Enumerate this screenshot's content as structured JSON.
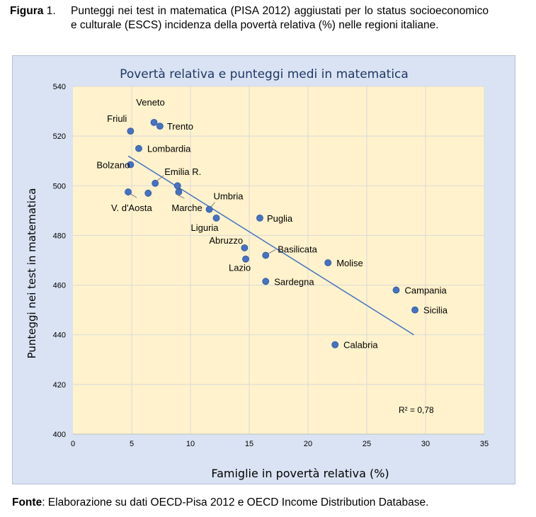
{
  "caption": {
    "label": "Figura",
    "number": "1",
    "text": "Punteggi nei test in matematica (PISA 2012) aggiustati per lo status socioeconomico e culturale (ESCS) incidenza della povertà relativa (%) nelle regioni italiane."
  },
  "source": {
    "label": "Fonte",
    "text": ": Elaborazione su dati OECD-Pisa 2012 e OECD Income Distribution Database."
  },
  "chart_data": {
    "type": "scatter",
    "title": "Povertà relativa e punteggi medi in matematica",
    "xlabel": "Famiglie in povertà relativa (%)",
    "ylabel": "Punteggi nei test in matematica",
    "xlim": [
      0,
      35
    ],
    "ylim": [
      400,
      540
    ],
    "xticks": [
      0,
      5,
      10,
      15,
      20,
      25,
      30,
      35
    ],
    "yticks": [
      400,
      420,
      440,
      460,
      480,
      500,
      520,
      540
    ],
    "grid": "vertical and horizontal",
    "points": [
      {
        "label": "Friuli",
        "x": 4.9,
        "y": 522
      },
      {
        "label": "Veneto",
        "x": 6.9,
        "y": 525.5
      },
      {
        "label": "Trento",
        "x": 7.4,
        "y": 524
      },
      {
        "label": "Lombardia",
        "x": 5.6,
        "y": 515
      },
      {
        "label": "Bolzano",
        "x": 4.9,
        "y": 508.5
      },
      {
        "label": "Emilia R.",
        "x": 7.0,
        "y": 501
      },
      {
        "label": "V. d'Aosta",
        "x": 4.7,
        "y": 497.5
      },
      {
        "label": "",
        "x": 6.4,
        "y": 497
      },
      {
        "label": "",
        "x": 8.9,
        "y": 500
      },
      {
        "label": "Marche",
        "x": 9.0,
        "y": 497.5
      },
      {
        "label": "Umbria",
        "x": 11.6,
        "y": 490.5
      },
      {
        "label": "Liguria",
        "x": 12.2,
        "y": 487
      },
      {
        "label": "Puglia",
        "x": 15.9,
        "y": 487
      },
      {
        "label": "Abruzzo",
        "x": 14.6,
        "y": 475
      },
      {
        "label": "Basilicata",
        "x": 16.4,
        "y": 472
      },
      {
        "label": "Lazio",
        "x": 14.7,
        "y": 470.5
      },
      {
        "label": "Molise",
        "x": 21.7,
        "y": 469
      },
      {
        "label": "Sardegna",
        "x": 16.4,
        "y": 461.5
      },
      {
        "label": "Campania",
        "x": 27.5,
        "y": 458
      },
      {
        "label": "Sicilia",
        "x": 29.1,
        "y": 450
      },
      {
        "label": "Calabria",
        "x": 22.3,
        "y": 436
      }
    ],
    "trendline": {
      "x": [
        4.7,
        29.0
      ],
      "y": [
        512,
        440
      ]
    },
    "r2_label": "R² = 0,78",
    "colors": {
      "point": "#4472c4",
      "line": "#4472c4",
      "plot_bg": "#fff2cc",
      "frame_bg": "#dae3f3",
      "title": "#1f3864",
      "grid": "#d9d9d9"
    }
  }
}
